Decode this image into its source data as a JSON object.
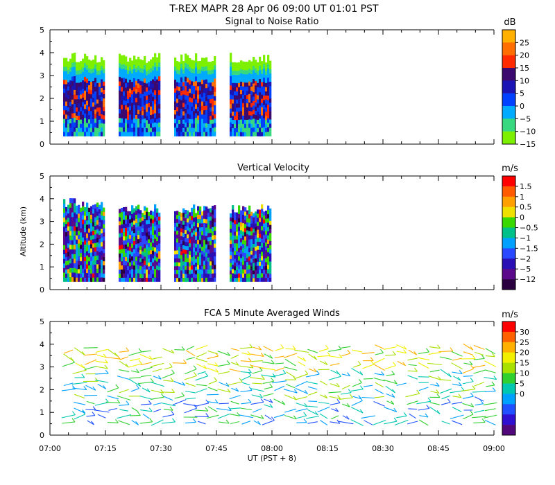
{
  "title": "T-REX  MAPR 28 Apr 06  09:00 UT  01:01  PST",
  "x_axis": {
    "label": "UT  (PST + 8)",
    "range_minutes": [
      420,
      540
    ],
    "ticks": [
      {
        "t": 420,
        "label": "07:00"
      },
      {
        "t": 435,
        "label": "07:15"
      },
      {
        "t": 450,
        "label": "07:30"
      },
      {
        "t": 465,
        "label": "07:45"
      },
      {
        "t": 480,
        "label": "08:00"
      },
      {
        "t": 495,
        "label": "08:15"
      },
      {
        "t": 510,
        "label": "08:30"
      },
      {
        "t": 525,
        "label": "08:45"
      },
      {
        "t": 540,
        "label": "09:00"
      }
    ]
  },
  "chart_data": [
    {
      "type": "heatmap",
      "title": "Signal to Noise Ratio",
      "ylabel": "",
      "ylim": [
        0,
        5
      ],
      "yticks": [
        "0",
        "1",
        "2",
        "3",
        "4",
        "5"
      ],
      "segments_minutes": [
        [
          423,
          435
        ],
        [
          438,
          450
        ],
        [
          453,
          465
        ],
        [
          468,
          480
        ]
      ],
      "unit": "dB",
      "colorbar_labels": [
        "25",
        "20",
        "15",
        "10",
        "5",
        "0",
        "−5",
        "−10",
        "−15"
      ],
      "colors": [
        "#ffb000",
        "#ff6e00",
        "#ff2a00",
        "#3c0a6e",
        "#1a14b4",
        "#0040ff",
        "#00aaff",
        "#38d880",
        "#7cf000"
      ]
    },
    {
      "type": "heatmap",
      "title": "Vertical Velocity",
      "ylabel": "Altitude (km)",
      "ylim": [
        0,
        5
      ],
      "yticks": [
        "0",
        "1",
        "2",
        "3",
        "4",
        "5"
      ],
      "segments_minutes": [
        [
          423,
          435
        ],
        [
          438,
          450
        ],
        [
          453,
          465
        ],
        [
          468,
          480
        ]
      ],
      "unit": "m/s",
      "colorbar_labels": [
        "1.5",
        "1",
        "0.5",
        "0",
        "−0.5",
        "−1",
        "−1.5",
        "−2",
        "−5",
        "−12"
      ],
      "colors": [
        "#ff0000",
        "#ff5a00",
        "#ffa000",
        "#f0e000",
        "#38d800",
        "#00c08a",
        "#00a0ff",
        "#2a48ff",
        "#2a10b4",
        "#5a0a8a",
        "#2a0040"
      ]
    },
    {
      "type": "scatter",
      "title": "FCA 5 Minute Averaged Winds",
      "ylabel": "",
      "ylim": [
        0,
        5
      ],
      "yticks": [
        "0",
        "1",
        "2",
        "3",
        "4",
        "5"
      ],
      "unit": "m/s",
      "colorbar_labels": [
        "30",
        "25",
        "20",
        "15",
        "10",
        "5",
        "0"
      ],
      "colors": [
        "#ff0000",
        "#ff6000",
        "#ffb000",
        "#f0f000",
        "#a8e000",
        "#30d030",
        "#00c8b0",
        "#00a0ff",
        "#2050ff",
        "#3010d0",
        "#50087a"
      ],
      "profile_times_minutes": [
        425,
        428,
        431,
        434,
        437,
        440,
        443,
        446,
        449,
        452,
        455,
        458,
        461,
        464,
        467,
        470,
        473,
        476,
        479,
        482,
        485,
        488,
        491,
        494,
        497,
        500,
        503,
        506,
        509,
        512,
        515,
        518,
        521,
        524,
        527,
        530,
        533,
        536,
        539
      ]
    }
  ]
}
